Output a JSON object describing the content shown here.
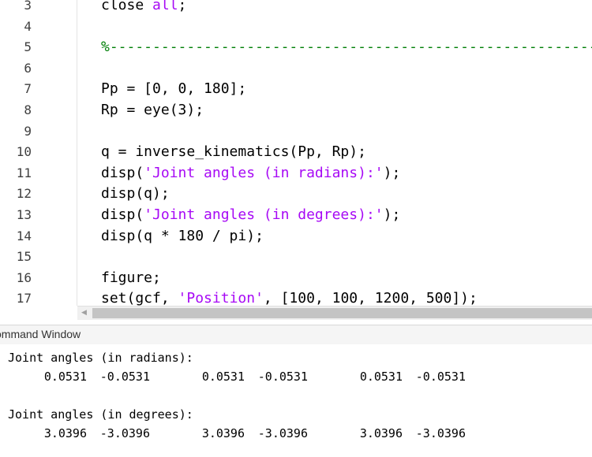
{
  "editor": {
    "lines": [
      {
        "num": "3",
        "segments": [
          {
            "t": "close ",
            "c": "plain"
          },
          {
            "t": "all",
            "c": "str"
          },
          {
            "t": ";",
            "c": "plain"
          }
        ]
      },
      {
        "num": "4",
        "segments": []
      },
      {
        "num": "5",
        "segments": [
          {
            "t": "%----------------------------------------------------------------",
            "c": "cmt"
          }
        ]
      },
      {
        "num": "6",
        "segments": []
      },
      {
        "num": "7",
        "segments": [
          {
            "t": "Pp = [0, 0, 180];",
            "c": "plain"
          }
        ]
      },
      {
        "num": "8",
        "segments": [
          {
            "t": "Rp = eye(3);",
            "c": "plain"
          }
        ]
      },
      {
        "num": "9",
        "segments": []
      },
      {
        "num": "10",
        "segments": [
          {
            "t": "q = inverse_kinematics(Pp, Rp);",
            "c": "plain"
          }
        ]
      },
      {
        "num": "11",
        "segments": [
          {
            "t": "disp(",
            "c": "plain"
          },
          {
            "t": "'Joint angles (in radians):'",
            "c": "str"
          },
          {
            "t": ");",
            "c": "plain"
          }
        ]
      },
      {
        "num": "12",
        "segments": [
          {
            "t": "disp(q);",
            "c": "plain"
          }
        ]
      },
      {
        "num": "13",
        "segments": [
          {
            "t": "disp(",
            "c": "plain"
          },
          {
            "t": "'Joint angles (in degrees):'",
            "c": "str"
          },
          {
            "t": ");",
            "c": "plain"
          }
        ]
      },
      {
        "num": "14",
        "segments": [
          {
            "t": "disp(q * 180 / pi);",
            "c": "plain"
          }
        ]
      },
      {
        "num": "15",
        "segments": []
      },
      {
        "num": "16",
        "segments": [
          {
            "t": "figure;",
            "c": "plain"
          }
        ]
      },
      {
        "num": "17",
        "segments": [
          {
            "t": "set(gcf, ",
            "c": "plain"
          },
          {
            "t": "'Position'",
            "c": "str"
          },
          {
            "t": ", [100, 100, 1200, 500]);",
            "c": "plain"
          }
        ]
      }
    ]
  },
  "command_window": {
    "title": "ommand Window",
    "outputs": [
      {
        "label": "Joint angles (in radians):",
        "values": [
          "0.0531",
          "-0.0531",
          "0.0531",
          "-0.0531",
          "0.0531",
          "-0.0531"
        ]
      },
      {
        "label": "Joint angles (in degrees):",
        "values": [
          "3.0396",
          "-3.0396",
          "3.0396",
          "-3.0396",
          "3.0396",
          "-3.0396"
        ]
      }
    ]
  },
  "scrollbar": {
    "left_arrow_icon": "caret-left-icon"
  }
}
